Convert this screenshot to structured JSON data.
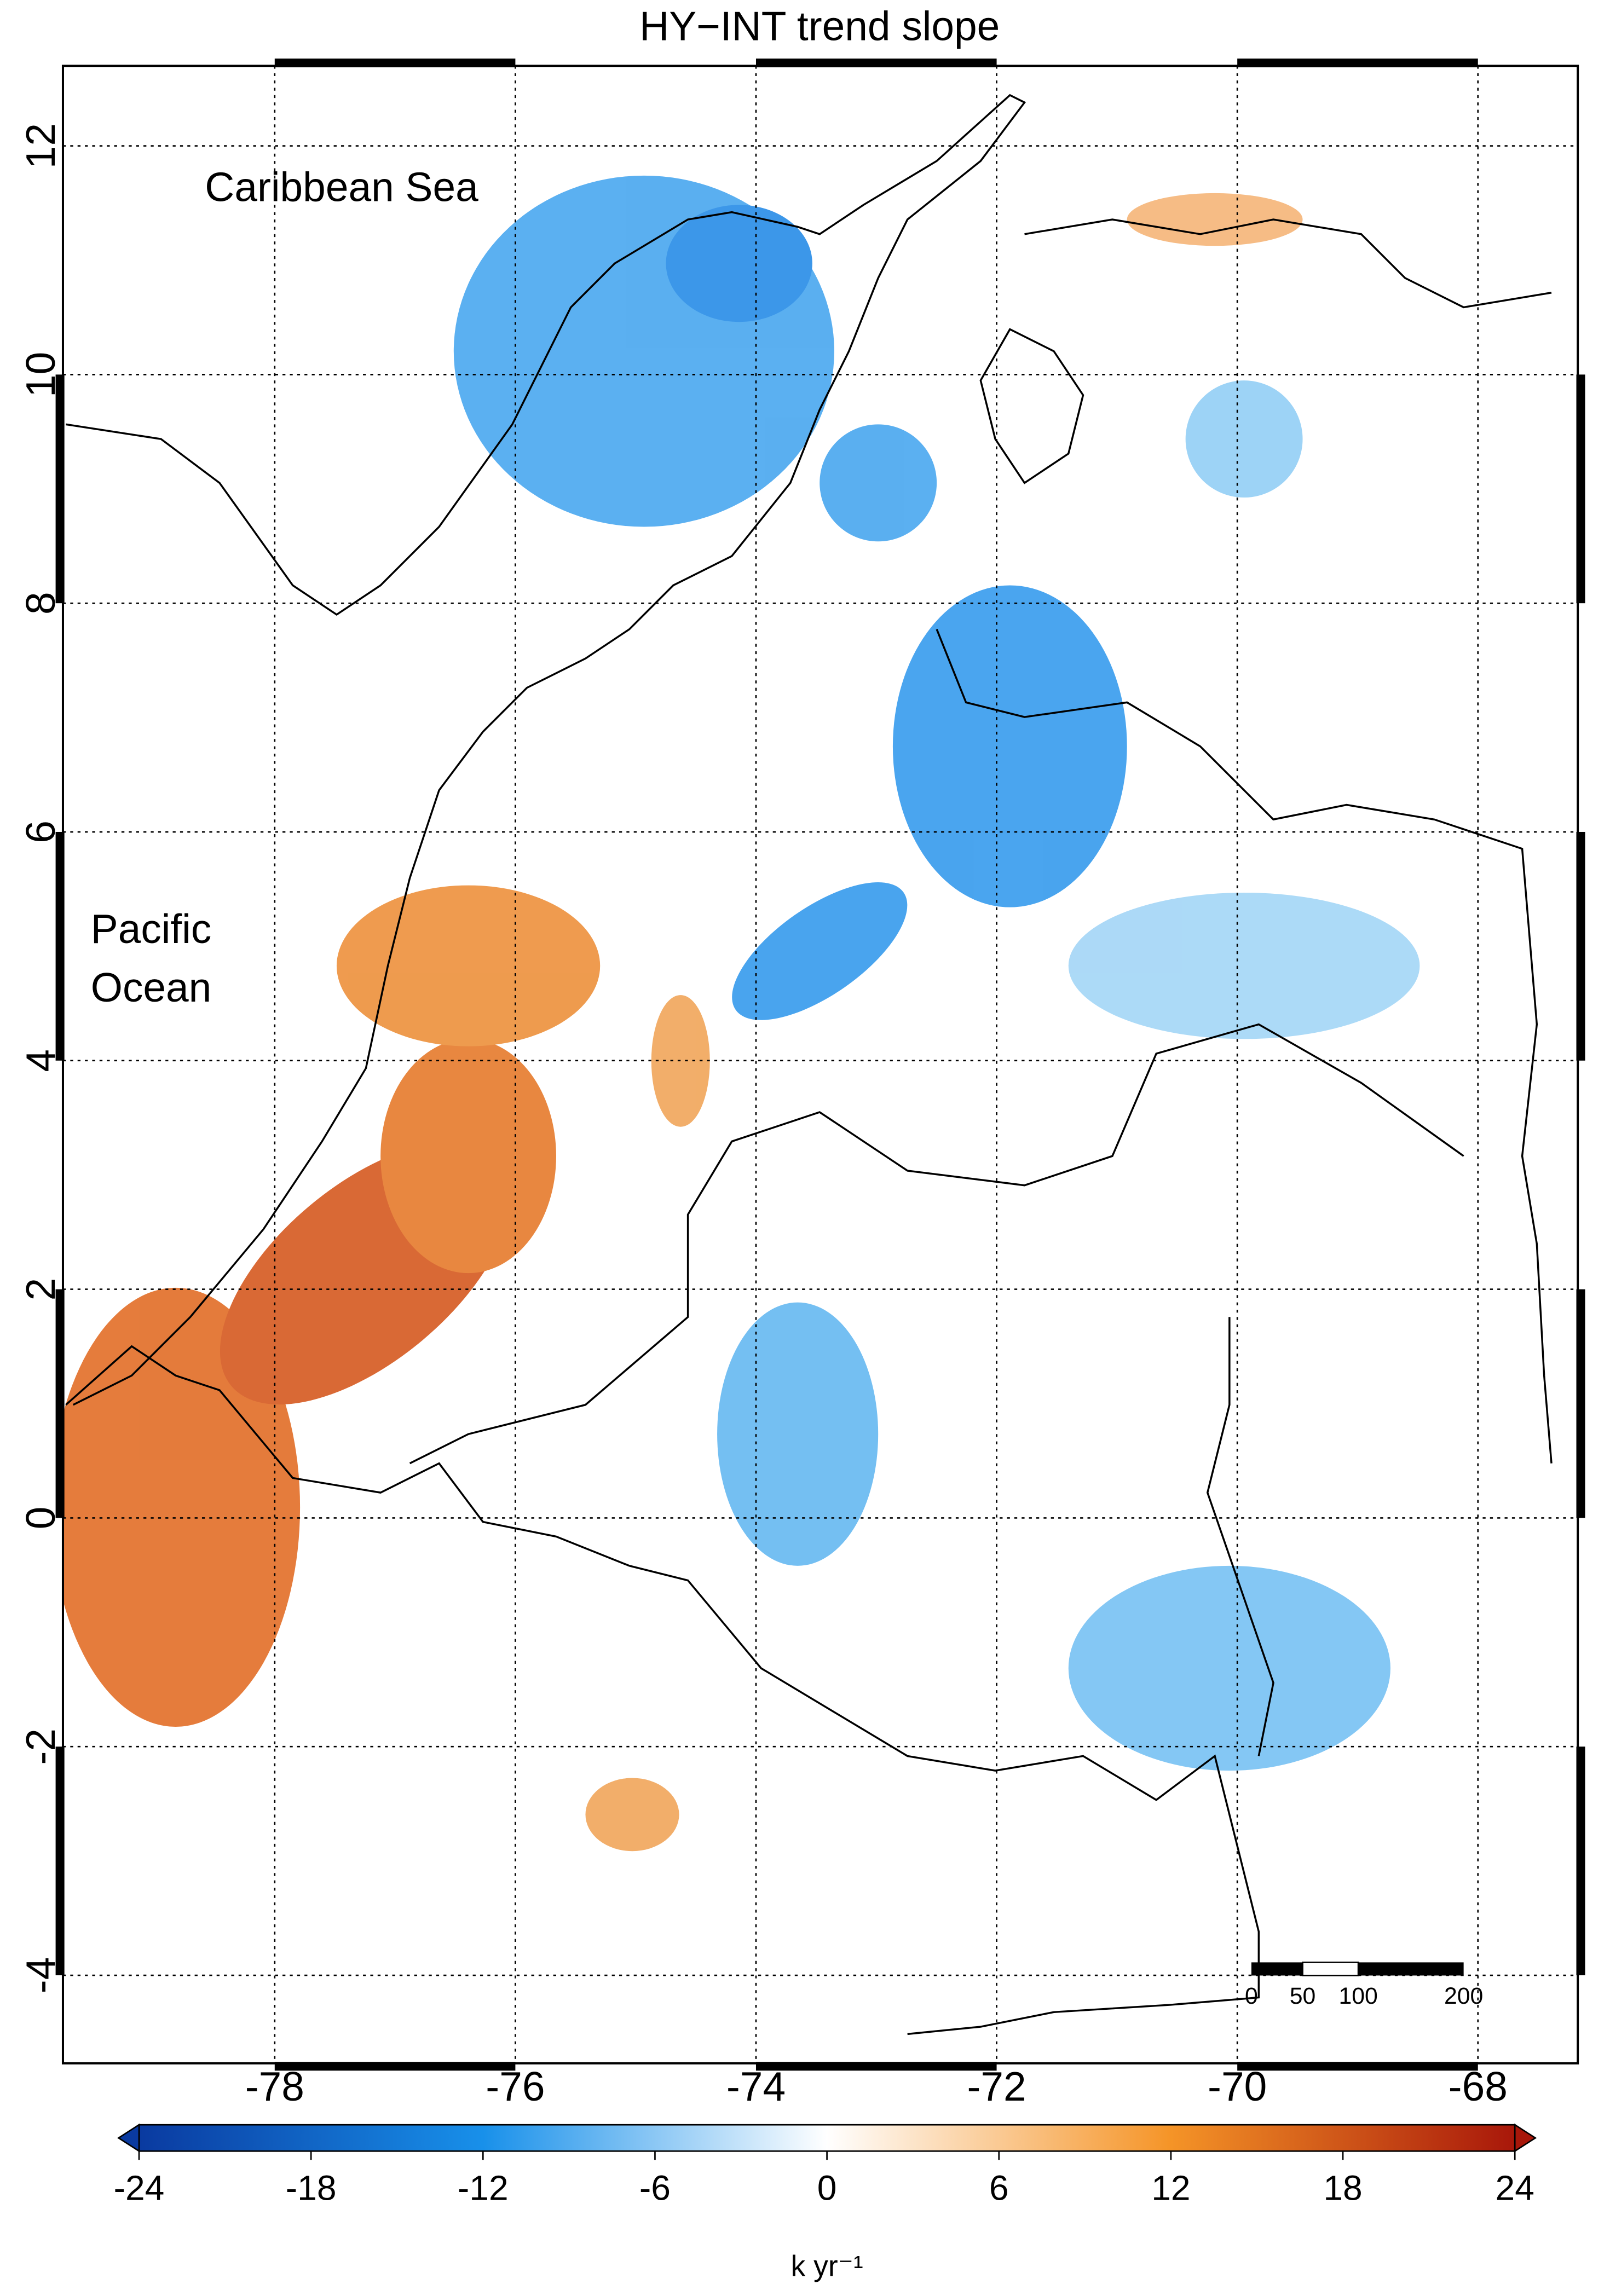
{
  "chart_data": {
    "type": "map",
    "title": "HY−INT trend slope",
    "xlim": [
      -79.76,
      -67.17
    ],
    "ylim": [
      -4.77,
      12.7
    ],
    "xticks": [
      -78,
      -76,
      -74,
      -72,
      -70,
      -68
    ],
    "yticks": [
      -4,
      -2,
      0,
      2,
      4,
      6,
      8,
      10,
      12
    ],
    "grid": true,
    "annotations": [
      "Caribbean Sea",
      "Pacific",
      "Ocean"
    ],
    "colorbar": {
      "lim": [
        -24,
        24
      ],
      "ticks": [
        -24,
        -18,
        -12,
        -6,
        0,
        6,
        12,
        18,
        24
      ],
      "label": "k yr⁻¹",
      "colors": [
        "#0a3aa0",
        "#1890ea",
        "#ffffff",
        "#f59427",
        "#a8170a"
      ]
    },
    "scale_bar": [
      "0",
      "50",
      "100",
      "200"
    ]
  }
}
